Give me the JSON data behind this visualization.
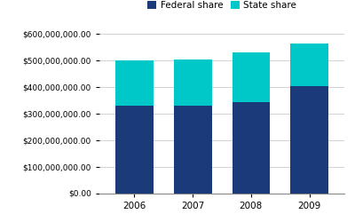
{
  "years": [
    "2006",
    "2007",
    "2008",
    "2009"
  ],
  "federal_share": [
    330000000,
    330000000,
    345000000,
    405000000
  ],
  "state_share": [
    170000000,
    175000000,
    185000000,
    160000000
  ],
  "federal_color": "#1a3a7a",
  "state_color": "#00c8c8",
  "ylim": [
    0,
    620000000
  ],
  "yticks": [
    0,
    100000000,
    200000000,
    300000000,
    400000000,
    500000000,
    600000000
  ],
  "legend_labels": [
    "Federal share",
    "State share"
  ],
  "background_color": "#ffffff",
  "bar_width": 0.65
}
